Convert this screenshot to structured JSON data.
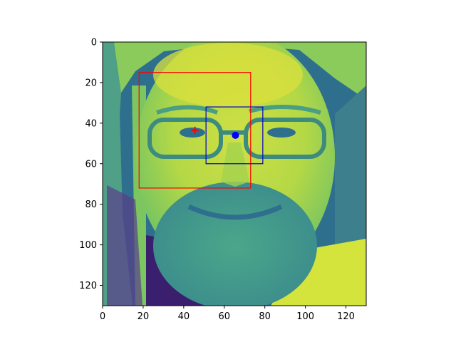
{
  "chart_data": {
    "type": "image",
    "title": "",
    "xlabel": "",
    "ylabel": "",
    "image_size": [
      130,
      130
    ],
    "xlim": [
      0,
      130
    ],
    "ylim": [
      130,
      0
    ],
    "x_ticks": [
      0,
      20,
      40,
      60,
      80,
      100,
      120
    ],
    "y_ticks": [
      0,
      20,
      40,
      60,
      80,
      100,
      120
    ],
    "x_tick_labels": [
      "0",
      "20",
      "40",
      "60",
      "80",
      "100",
      "120"
    ],
    "y_tick_labels": [
      "0",
      "20",
      "40",
      "60",
      "80",
      "100",
      "120"
    ],
    "colormap": "viridis",
    "boxes": [
      {
        "color": "#ff0000",
        "x0": 18,
        "y0": 15,
        "x1": 73,
        "y1": 72
      },
      {
        "color": "#0000c8",
        "x0": 51,
        "y0": 32,
        "x1": 79,
        "y1": 60
      }
    ],
    "markers": [
      {
        "color": "#ff0000",
        "shape": "plus",
        "x": 45.5,
        "y": 43.5
      },
      {
        "color": "#0000ff",
        "shape": "dot",
        "x": 65.5,
        "y": 46
      }
    ]
  }
}
